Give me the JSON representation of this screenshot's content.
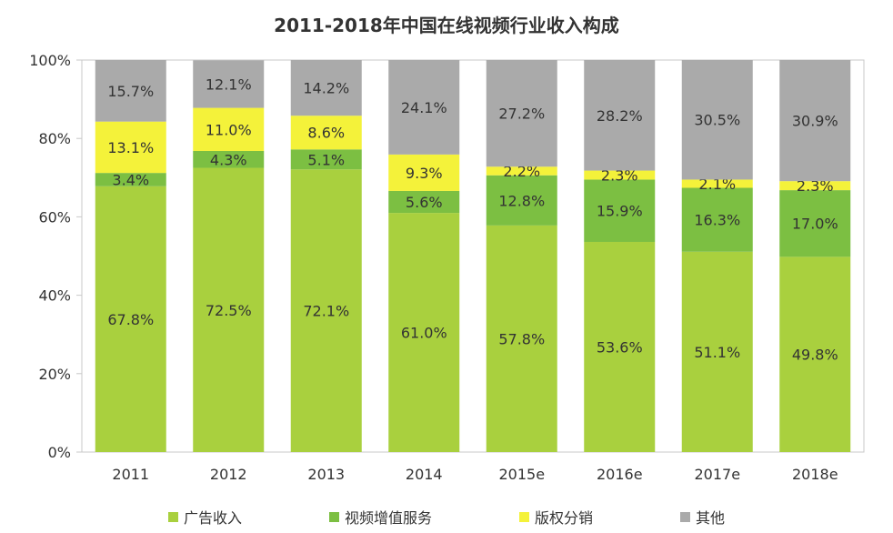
{
  "chart_data": {
    "type": "bar",
    "stacked": true,
    "title": "2011-2018年中国在线视频行业收入构成",
    "xlabel": "",
    "ylabel": "",
    "ylim": [
      0,
      100
    ],
    "yticks": [
      "0%",
      "20%",
      "40%",
      "60%",
      "80%",
      "100%"
    ],
    "grid": false,
    "legend_position": "bottom",
    "categories": [
      "2011",
      "2012",
      "2013",
      "2014",
      "2015e",
      "2016e",
      "2017e",
      "2018e"
    ],
    "series": [
      {
        "name": "广告收入",
        "color": "#a9d03e",
        "values": [
          67.8,
          72.5,
          72.1,
          61.0,
          57.8,
          53.6,
          51.1,
          49.8
        ],
        "labels": [
          "67.8%",
          "72.5%",
          "72.1%",
          "61.0%",
          "57.8%",
          "53.6%",
          "51.1%",
          "49.8%"
        ]
      },
      {
        "name": "视频增值服务",
        "color": "#7cbf42",
        "values": [
          3.4,
          4.3,
          5.1,
          5.6,
          12.8,
          15.9,
          16.3,
          17.0
        ],
        "labels": [
          "3.4%",
          "4.3%",
          "5.1%",
          "5.6%",
          "12.8%",
          "15.9%",
          "16.3%",
          "17.0%"
        ]
      },
      {
        "name": "版权分销",
        "color": "#f4f23a",
        "values": [
          13.1,
          11.0,
          8.6,
          9.3,
          2.2,
          2.3,
          2.1,
          2.3
        ],
        "labels": [
          "13.1%",
          "11.0%",
          "8.6%",
          "9.3%",
          "2.2%",
          "2.3%",
          "2.1%",
          "2.3%"
        ]
      },
      {
        "name": "其他",
        "color": "#aaaaaa",
        "values": [
          15.7,
          12.1,
          14.2,
          24.1,
          27.2,
          28.2,
          30.5,
          30.9
        ],
        "labels": [
          "15.7%",
          "12.1%",
          "14.2%",
          "24.1%",
          "27.2%",
          "28.2%",
          "30.5%",
          "30.9%"
        ]
      }
    ]
  }
}
